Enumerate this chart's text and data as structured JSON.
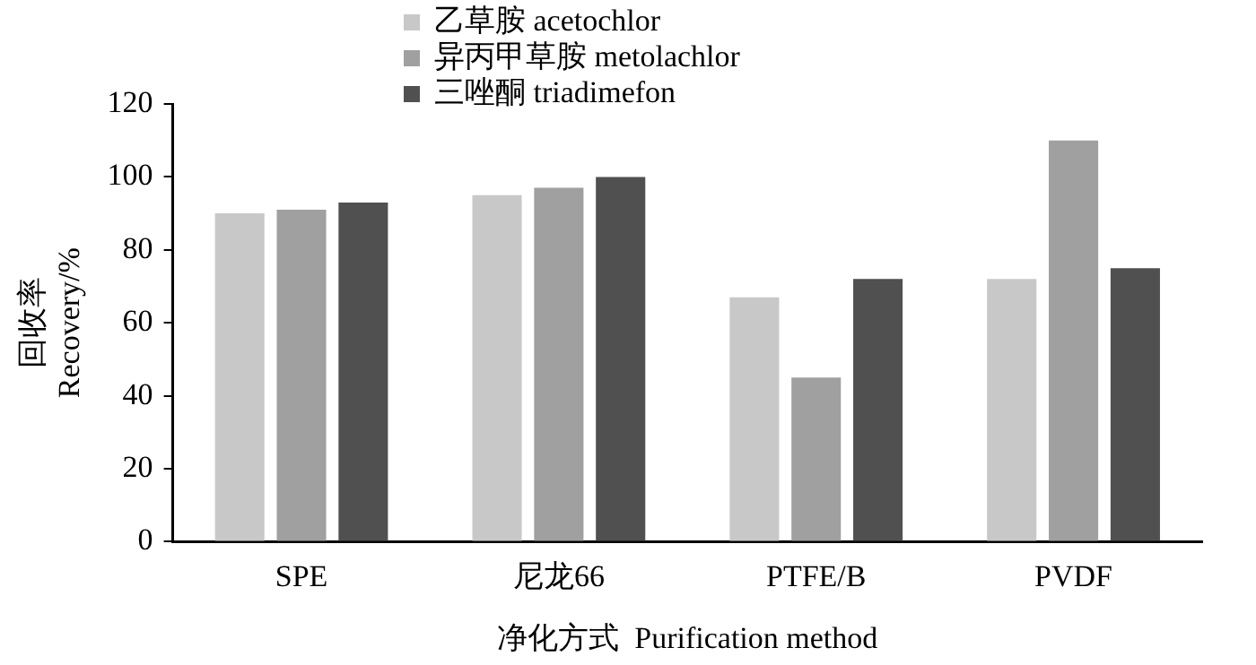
{
  "chart_data": {
    "type": "bar",
    "xlabel": "净化方式  Purification method",
    "ylabel": "回收率\nRecovery/%",
    "categories": [
      "SPE",
      "尼龙66",
      "PTFE/B",
      "PVDF"
    ],
    "series": [
      {
        "name": "乙草胺 acetochlor",
        "color": "#c8c8c8",
        "values": [
          90,
          95,
          67,
          72
        ]
      },
      {
        "name": "异丙甲草胺 metolachlor",
        "color": "#a0a0a0",
        "values": [
          91,
          97,
          45,
          110
        ]
      },
      {
        "name": "三唑酮 triadimefon",
        "color": "#505050",
        "values": [
          93,
          100,
          72,
          75
        ]
      }
    ],
    "ylim": [
      0,
      120
    ],
    "yticks": [
      0,
      20,
      40,
      60,
      80,
      100,
      120
    ],
    "grid": false,
    "legend": "top"
  }
}
